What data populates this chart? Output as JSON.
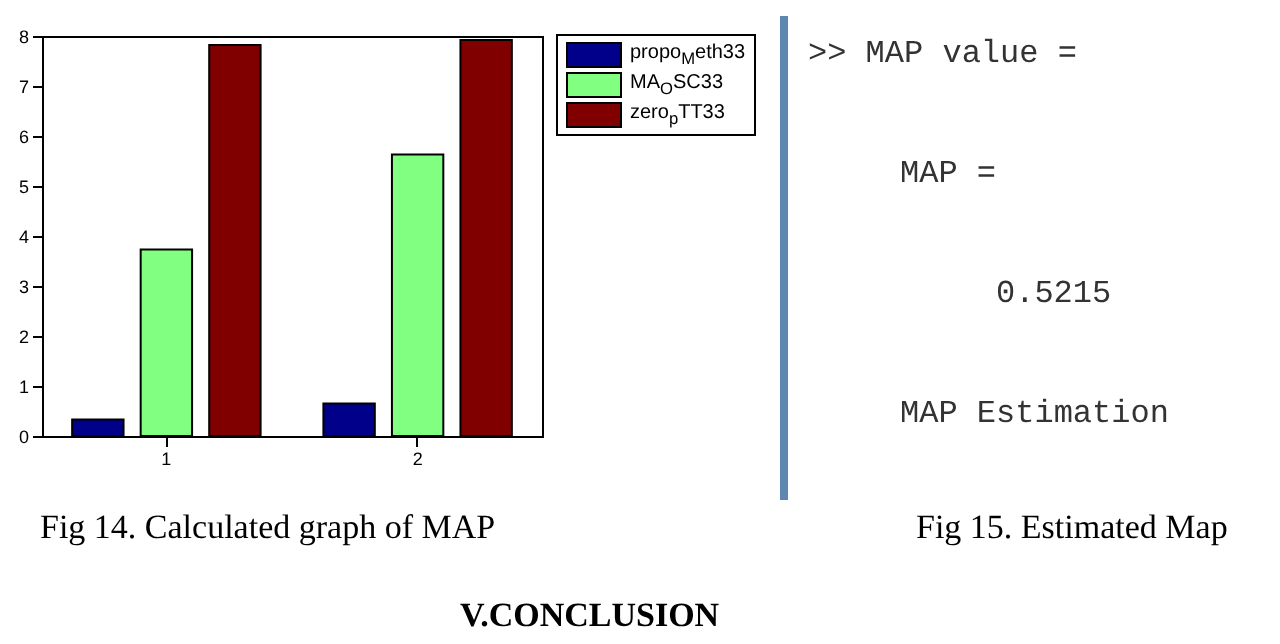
{
  "chart_data": {
    "type": "bar",
    "categories": [
      "1",
      "2"
    ],
    "series": [
      {
        "name": "propo$_{M}$eth33",
        "color": "#00008b",
        "values": [
          0.33,
          0.65
        ]
      },
      {
        "name": "MA$_{O}$SC33",
        "color": "#80ff80",
        "values": [
          3.73,
          5.63
        ]
      },
      {
        "name": "zero$_{p}$TT33",
        "color": "#800000",
        "values": [
          7.82,
          7.92
        ]
      }
    ],
    "ylim": [
      0,
      8
    ],
    "yticks": [
      0,
      1,
      2,
      3,
      4,
      5,
      6,
      7,
      8
    ],
    "legend": "top right",
    "annotations": [
      ">> MAP value =",
      "MAP =",
      "0.5215",
      "MAP Estimation",
      "Fig 14. Calculated graph of MAP",
      "Fig 15. Estimated Map",
      "V.CONCLUSION"
    ]
  }
}
